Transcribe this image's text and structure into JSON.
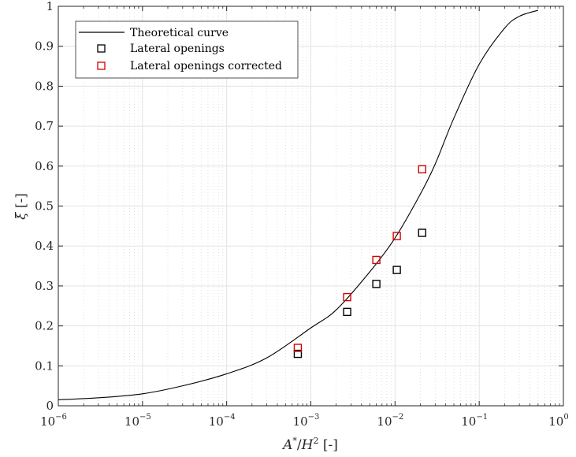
{
  "chart_data": {
    "type": "scatter",
    "xscale": "log",
    "xlim": [
      1e-06,
      1
    ],
    "ylim": [
      0,
      1
    ],
    "xlabel_parts": {
      "base": "A",
      "base_sup": "*",
      "slash": "/",
      "den": "H",
      "den_sup": "2",
      "unit": " [-]"
    },
    "ylabel_parts": {
      "symbol": "ξ",
      "unit": " [-]"
    },
    "grid": true,
    "minor_grid": true,
    "legend_position": "top-left",
    "x_ticks": [
      {
        "base": "10",
        "exp": "−6"
      },
      {
        "base": "10",
        "exp": "−5"
      },
      {
        "base": "10",
        "exp": "−4"
      },
      {
        "base": "10",
        "exp": "−3"
      },
      {
        "base": "10",
        "exp": "−2"
      },
      {
        "base": "10",
        "exp": "−1"
      },
      {
        "base": "10",
        "exp": "0"
      }
    ],
    "y_ticks": [
      "0",
      "0.1",
      "0.2",
      "0.3",
      "0.4",
      "0.5",
      "0.6",
      "0.7",
      "0.8",
      "0.9",
      "1"
    ],
    "series": [
      {
        "name": "Theoretical curve",
        "type": "line",
        "color": "#000000",
        "x": [
          1e-06,
          3e-06,
          1e-05,
          3e-05,
          0.0001,
          0.0003,
          0.001,
          0.002,
          0.005,
          0.01,
          0.02,
          0.03,
          0.05,
          0.1,
          0.2,
          0.3,
          0.5
        ],
        "y": [
          0.015,
          0.02,
          0.03,
          0.05,
          0.08,
          0.12,
          0.195,
          0.24,
          0.335,
          0.42,
          0.53,
          0.605,
          0.72,
          0.855,
          0.945,
          0.975,
          0.99
        ]
      },
      {
        "name": "Lateral openings",
        "type": "scatter",
        "marker": "square",
        "color": "#000000",
        "x": [
          0.0007,
          0.0027,
          0.006,
          0.0105,
          0.021
        ],
        "y": [
          0.13,
          0.235,
          0.305,
          0.34,
          0.433
        ]
      },
      {
        "name": "Lateral openings corrected",
        "type": "scatter",
        "marker": "square",
        "color": "#d40000",
        "x": [
          0.0007,
          0.0027,
          0.006,
          0.0105,
          0.021
        ],
        "y": [
          0.145,
          0.272,
          0.365,
          0.425,
          0.592
        ]
      }
    ]
  }
}
